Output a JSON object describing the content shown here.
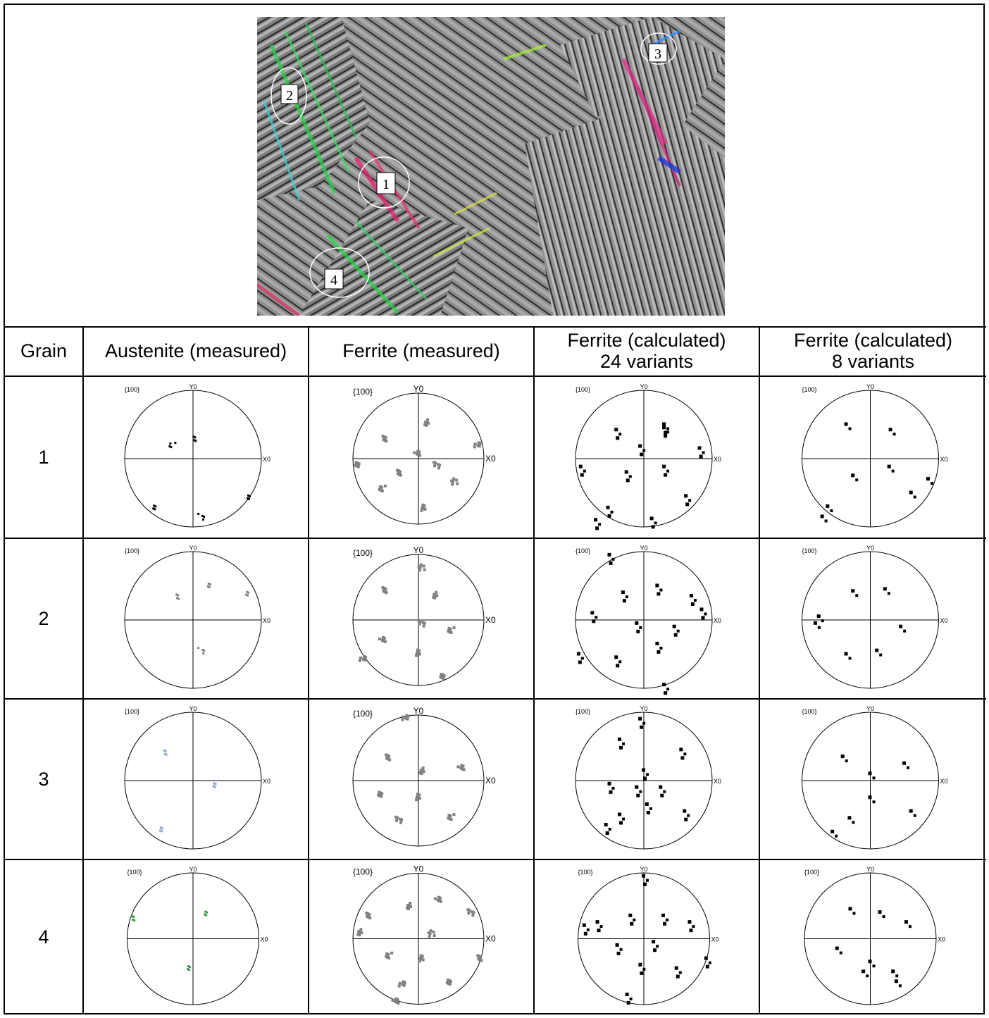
{
  "micrograph": {
    "grain_labels": [
      "1",
      "2",
      "3",
      "4"
    ]
  },
  "table": {
    "headers": [
      {
        "line1": "Grain",
        "line2": ""
      },
      {
        "line1": "Austenite (measured)",
        "line2": ""
      },
      {
        "line1": "Ferrite (measured)",
        "line2": ""
      },
      {
        "line1": "Ferrite (calculated)",
        "line2": "24 variants"
      },
      {
        "line1": "Ferrite (calculated)",
        "line2": "8 variants"
      }
    ],
    "rows": [
      {
        "grain": "1"
      },
      {
        "grain": "2"
      },
      {
        "grain": "3"
      },
      {
        "grain": "4"
      }
    ]
  },
  "pole_figure": {
    "title": "{100}",
    "y_label": "Y0",
    "x_label": "X0"
  },
  "colors": {
    "austenite_grain1": "#000000",
    "austenite_grain2": "#808080",
    "austenite_grain3": "#8ea6cc",
    "austenite_grain4": "#3a9a4a",
    "ferrite_measured": "#808080",
    "ferrite_calculated": "#000000"
  },
  "pole_points": {
    "aus": [
      [
        [
          0.05,
          0.28
        ],
        [
          0.82,
          -0.55
        ],
        [
          -0.58,
          -0.72
        ],
        [
          0.12,
          -0.85
        ],
        [
          -0.3,
          0.2
        ]
      ],
      [
        [
          -0.2,
          0.33
        ],
        [
          0.8,
          0.4
        ],
        [
          0.22,
          0.5
        ],
        [
          0.12,
          -0.45
        ]
      ],
      [
        [
          -0.38,
          0.4
        ],
        [
          0.32,
          -0.05
        ],
        [
          -0.48,
          -0.72
        ]
      ],
      [
        [
          -0.88,
          0.3
        ],
        [
          0.2,
          0.4
        ],
        [
          -0.08,
          -0.45
        ]
      ]
    ],
    "fm": [
      [
        [
          -0.5,
          0.3
        ],
        [
          0.12,
          0.55
        ],
        [
          -0.02,
          0.08
        ],
        [
          0.28,
          -0.1
        ],
        [
          -0.55,
          -0.45
        ],
        [
          0.08,
          -0.75
        ],
        [
          -0.95,
          -0.08
        ],
        [
          0.9,
          0.2
        ],
        [
          0.55,
          -0.35
        ],
        [
          -0.28,
          -0.22
        ]
      ],
      [
        [
          -0.5,
          0.45
        ],
        [
          0.25,
          0.38
        ],
        [
          -0.55,
          -0.3
        ],
        [
          0.05,
          -0.05
        ],
        [
          0.5,
          -0.15
        ],
        [
          0.0,
          -0.5
        ],
        [
          0.35,
          -0.85
        ],
        [
          -0.85,
          -0.6
        ],
        [
          0.05,
          0.8
        ]
      ],
      [
        [
          -0.45,
          0.35
        ],
        [
          0.05,
          0.15
        ],
        [
          0.65,
          0.2
        ],
        [
          -0.3,
          -0.6
        ],
        [
          0.5,
          -0.55
        ],
        [
          0.0,
          -0.25
        ],
        [
          -0.6,
          -0.2
        ],
        [
          -0.2,
          0.95
        ]
      ],
      [
        [
          -0.75,
          0.35
        ],
        [
          -0.15,
          0.5
        ],
        [
          0.3,
          0.6
        ],
        [
          0.8,
          0.4
        ],
        [
          -0.45,
          -0.25
        ],
        [
          0.05,
          -0.3
        ],
        [
          0.45,
          -0.65
        ],
        [
          -0.25,
          -0.7
        ],
        [
          0.2,
          0.08
        ],
        [
          0.95,
          -0.3
        ],
        [
          -0.9,
          0.1
        ],
        [
          -0.35,
          -0.95
        ]
      ]
    ],
    "f24": [
      [
        [
          -0.4,
          0.42
        ],
        [
          0.3,
          0.5
        ],
        [
          0.82,
          0.15
        ],
        [
          -0.92,
          -0.12
        ],
        [
          -0.25,
          -0.2
        ],
        [
          0.3,
          -0.12
        ],
        [
          0.62,
          -0.55
        ],
        [
          0.12,
          -0.88
        ],
        [
          -0.52,
          -0.72
        ],
        [
          -0.05,
          0.18
        ],
        [
          0.3,
          0.45
        ],
        [
          -0.7,
          -0.9
        ]
      ],
      [
        [
          -0.3,
          0.4
        ],
        [
          0.2,
          0.5
        ],
        [
          0.7,
          0.35
        ],
        [
          -0.75,
          0.1
        ],
        [
          -0.1,
          -0.05
        ],
        [
          0.45,
          -0.1
        ],
        [
          0.2,
          -0.35
        ],
        [
          -0.4,
          -0.55
        ],
        [
          0.3,
          -0.95
        ],
        [
          -0.5,
          0.95
        ],
        [
          0.85,
          0.15
        ],
        [
          -0.95,
          -0.5
        ]
      ],
      [
        [
          -0.35,
          0.6
        ],
        [
          0.55,
          0.45
        ],
        [
          -0.5,
          -0.05
        ],
        [
          0.0,
          0.15
        ],
        [
          0.25,
          -0.1
        ],
        [
          -0.35,
          -0.5
        ],
        [
          0.6,
          -0.45
        ],
        [
          0.05,
          -0.35
        ],
        [
          -0.05,
          0.9
        ],
        [
          -0.1,
          -0.1
        ],
        [
          -0.55,
          -0.65
        ]
      ],
      [
        [
          -0.7,
          0.25
        ],
        [
          -0.2,
          0.35
        ],
        [
          0.3,
          0.35
        ],
        [
          0.7,
          0.25
        ],
        [
          -0.4,
          -0.1
        ],
        [
          0.15,
          -0.05
        ],
        [
          0.5,
          -0.45
        ],
        [
          -0.05,
          -0.4
        ],
        [
          -0.25,
          -0.85
        ],
        [
          0.0,
          0.95
        ],
        [
          0.95,
          -0.3
        ],
        [
          -0.9,
          0.2
        ]
      ]
    ],
    "f8": [
      [
        [
          -0.35,
          0.5
        ],
        [
          0.3,
          0.42
        ],
        [
          -0.25,
          -0.25
        ],
        [
          0.28,
          -0.12
        ],
        [
          0.6,
          -0.5
        ],
        [
          -0.62,
          -0.7
        ],
        [
          0.85,
          -0.3
        ],
        [
          -0.7,
          -0.85
        ]
      ],
      [
        [
          -0.25,
          0.42
        ],
        [
          0.22,
          0.45
        ],
        [
          -0.75,
          0.05
        ],
        [
          0.45,
          -0.1
        ],
        [
          -0.35,
          -0.5
        ],
        [
          0.1,
          -0.45
        ],
        [
          -0.8,
          -0.05
        ]
      ],
      [
        [
          -0.4,
          0.35
        ],
        [
          0.5,
          0.25
        ],
        [
          0.0,
          0.1
        ],
        [
          -0.3,
          -0.55
        ],
        [
          0.6,
          -0.45
        ],
        [
          0.0,
          -0.25
        ],
        [
          -0.55,
          -0.75
        ]
      ],
      [
        [
          -0.3,
          0.45
        ],
        [
          0.15,
          0.4
        ],
        [
          0.55,
          0.25
        ],
        [
          -0.5,
          -0.15
        ],
        [
          0.0,
          -0.35
        ],
        [
          0.35,
          -0.5
        ],
        [
          -0.1,
          -0.5
        ],
        [
          0.4,
          -0.65
        ]
      ]
    ]
  }
}
